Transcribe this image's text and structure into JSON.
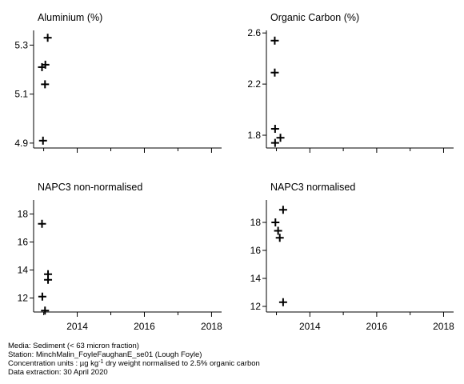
{
  "x_axis": {
    "ticks": [
      2014,
      2016,
      2018
    ],
    "xlim": [
      2012.7,
      2018.3
    ]
  },
  "chart_data": [
    {
      "type": "scatter",
      "title": "Aluminium (%)",
      "ylim": [
        4.88,
        5.36
      ],
      "yticks": [
        4.9,
        5.1,
        5.3
      ],
      "ytick_labels": [
        "4.9",
        "5.1",
        "5.3"
      ],
      "x": [
        2013.12,
        2012.95,
        2013.05,
        2013.04,
        2012.98
      ],
      "y": [
        5.33,
        5.21,
        5.22,
        5.14,
        4.91
      ]
    },
    {
      "type": "scatter",
      "title": "Organic Carbon (%)",
      "ylim": [
        1.7,
        2.62
      ],
      "yticks": [
        1.8,
        2.2,
        2.6
      ],
      "ytick_labels": [
        "1.8",
        "2.2",
        "2.6"
      ],
      "x": [
        2012.95,
        2012.95,
        2012.96,
        2013.12,
        2012.96
      ],
      "y": [
        2.54,
        2.29,
        1.85,
        1.78,
        1.74
      ]
    },
    {
      "type": "scatter",
      "title": "NAPC3 non-normalised",
      "ylim": [
        11.0,
        19.0
      ],
      "yticks": [
        12,
        14,
        16,
        18
      ],
      "ytick_labels": [
        "12",
        "14",
        "16",
        "18"
      ],
      "x": [
        2012.95,
        2013.13,
        2013.13,
        2012.96,
        2013.04
      ],
      "y": [
        17.3,
        13.7,
        13.3,
        12.1,
        11.1
      ]
    },
    {
      "type": "scatter",
      "title": "NAPC3 normalised",
      "ylim": [
        11.6,
        19.6
      ],
      "yticks": [
        12,
        14,
        16,
        18
      ],
      "ytick_labels": [
        "12",
        "14",
        "16",
        "18"
      ],
      "x": [
        2013.2,
        2012.97,
        2013.05,
        2013.1,
        2013.2
      ],
      "y": [
        18.9,
        18.0,
        17.4,
        16.9,
        12.3
      ]
    }
  ],
  "footnote": {
    "media": "Media: Sediment (< 63 micron fraction)",
    "station": "Station: MinchMalin_FoyleFaughanE_se01 (Lough Foyle)",
    "units_prefix": "Concentration units : µg kg",
    "units_sup": "-1",
    "units_suffix": " dry weight normalised to 2.5% organic carbon",
    "extraction": "Data extraction: 30 April 2020"
  }
}
